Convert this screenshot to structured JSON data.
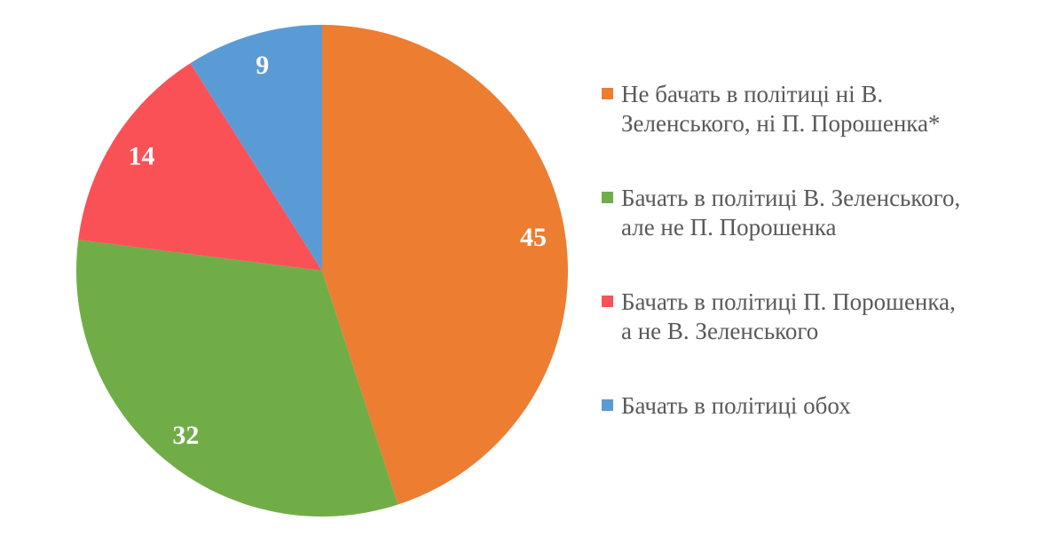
{
  "chart_data": {
    "type": "pie",
    "title": "",
    "legend_position": "right",
    "start_angle_deg": 0,
    "direction": "clockwise",
    "data_label_color": "#FFFFFF",
    "text_color": "#595959",
    "background_color": "#FFFFFF",
    "slices": [
      {
        "label": "Не бачать в політиці ні В. Зеленського, ні П. Порошенка*",
        "label_lines": [
          "Не бачать в політиці ні В.",
          "Зеленського, ні П. Порошенка*"
        ],
        "value": 45,
        "color": "#ED7D31"
      },
      {
        "label": "Бачать в політиці В. Зеленського, але не П. Порошенка",
        "label_lines": [
          "Бачать в політиці В. Зеленського,",
          "але не П. Порошенка"
        ],
        "value": 32,
        "color": "#70AD47"
      },
      {
        "label": "Бачать в політиці П. Порошенка, а не В. Зеленського",
        "label_lines": [
          "Бачать в політиці П. Порошенка,",
          "а не В. Зеленського"
        ],
        "value": 14,
        "color": "#FA5157"
      },
      {
        "label": "Бачать в політиці обох",
        "label_lines": [
          "Бачать в політиці обох"
        ],
        "value": 9,
        "color": "#5B9BD5"
      }
    ]
  }
}
